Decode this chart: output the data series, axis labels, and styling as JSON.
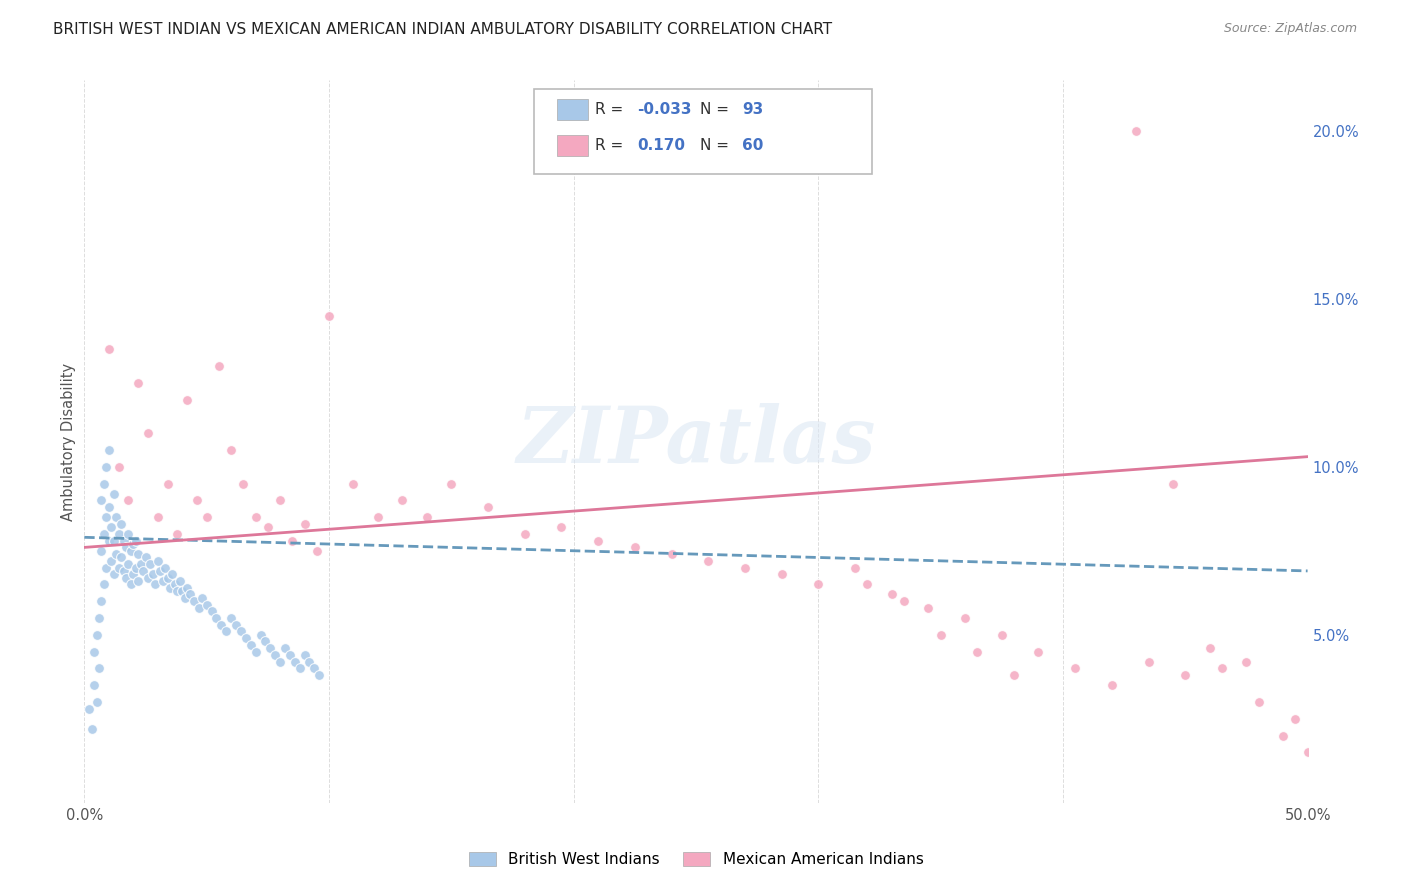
{
  "title": "BRITISH WEST INDIAN VS MEXICAN AMERICAN INDIAN AMBULATORY DISABILITY CORRELATION CHART",
  "source": "Source: ZipAtlas.com",
  "ylabel": "Ambulatory Disability",
  "blue_color": "#a8c8e8",
  "pink_color": "#f4a8c0",
  "blue_line_color": "#6699bb",
  "pink_line_color": "#dd7799",
  "legend_R1": "-0.033",
  "legend_N1": "93",
  "legend_R2": "0.170",
  "legend_N2": "60",
  "legend_label1": "British West Indians",
  "legend_label2": "Mexican American Indians",
  "watermark": "ZIPatlas",
  "title_color": "#222222",
  "source_color": "#888888",
  "axis_label_color": "#555555",
  "right_tick_color": "#4472c4",
  "grid_color": "#dddddd",
  "blue_x": [
    0.002,
    0.003,
    0.004,
    0.004,
    0.005,
    0.005,
    0.006,
    0.006,
    0.007,
    0.007,
    0.007,
    0.008,
    0.008,
    0.008,
    0.009,
    0.009,
    0.009,
    0.01,
    0.01,
    0.01,
    0.011,
    0.011,
    0.012,
    0.012,
    0.012,
    0.013,
    0.013,
    0.014,
    0.014,
    0.015,
    0.015,
    0.016,
    0.016,
    0.017,
    0.017,
    0.018,
    0.018,
    0.019,
    0.019,
    0.02,
    0.02,
    0.021,
    0.021,
    0.022,
    0.022,
    0.023,
    0.024,
    0.025,
    0.026,
    0.027,
    0.028,
    0.029,
    0.03,
    0.031,
    0.032,
    0.033,
    0.034,
    0.035,
    0.036,
    0.037,
    0.038,
    0.039,
    0.04,
    0.041,
    0.042,
    0.043,
    0.045,
    0.047,
    0.048,
    0.05,
    0.052,
    0.054,
    0.056,
    0.058,
    0.06,
    0.062,
    0.064,
    0.066,
    0.068,
    0.07,
    0.072,
    0.074,
    0.076,
    0.078,
    0.08,
    0.082,
    0.084,
    0.086,
    0.088,
    0.09,
    0.092,
    0.094,
    0.096
  ],
  "blue_y": [
    0.028,
    0.022,
    0.035,
    0.045,
    0.03,
    0.05,
    0.04,
    0.055,
    0.06,
    0.075,
    0.09,
    0.065,
    0.08,
    0.095,
    0.07,
    0.085,
    0.1,
    0.078,
    0.088,
    0.105,
    0.072,
    0.082,
    0.068,
    0.078,
    0.092,
    0.074,
    0.085,
    0.07,
    0.08,
    0.073,
    0.083,
    0.069,
    0.078,
    0.067,
    0.076,
    0.071,
    0.08,
    0.065,
    0.075,
    0.068,
    0.077,
    0.07,
    0.078,
    0.066,
    0.074,
    0.071,
    0.069,
    0.073,
    0.067,
    0.071,
    0.068,
    0.065,
    0.072,
    0.069,
    0.066,
    0.07,
    0.067,
    0.064,
    0.068,
    0.065,
    0.063,
    0.066,
    0.063,
    0.061,
    0.064,
    0.062,
    0.06,
    0.058,
    0.061,
    0.059,
    0.057,
    0.055,
    0.053,
    0.051,
    0.055,
    0.053,
    0.051,
    0.049,
    0.047,
    0.045,
    0.05,
    0.048,
    0.046,
    0.044,
    0.042,
    0.046,
    0.044,
    0.042,
    0.04,
    0.044,
    0.042,
    0.04,
    0.038
  ],
  "pink_x": [
    0.01,
    0.014,
    0.018,
    0.022,
    0.026,
    0.03,
    0.034,
    0.038,
    0.042,
    0.046,
    0.05,
    0.055,
    0.06,
    0.065,
    0.07,
    0.075,
    0.08,
    0.085,
    0.09,
    0.095,
    0.1,
    0.11,
    0.12,
    0.13,
    0.14,
    0.15,
    0.165,
    0.18,
    0.195,
    0.21,
    0.225,
    0.24,
    0.255,
    0.27,
    0.285,
    0.3,
    0.315,
    0.33,
    0.345,
    0.36,
    0.375,
    0.39,
    0.405,
    0.42,
    0.435,
    0.45,
    0.465,
    0.48,
    0.495,
    0.32,
    0.335,
    0.35,
    0.365,
    0.38,
    0.5,
    0.49,
    0.475,
    0.46,
    0.445,
    0.43
  ],
  "pink_y": [
    0.135,
    0.1,
    0.09,
    0.125,
    0.11,
    0.085,
    0.095,
    0.08,
    0.12,
    0.09,
    0.085,
    0.13,
    0.105,
    0.095,
    0.085,
    0.082,
    0.09,
    0.078,
    0.083,
    0.075,
    0.145,
    0.095,
    0.085,
    0.09,
    0.085,
    0.095,
    0.088,
    0.08,
    0.082,
    0.078,
    0.076,
    0.074,
    0.072,
    0.07,
    0.068,
    0.065,
    0.07,
    0.062,
    0.058,
    0.055,
    0.05,
    0.045,
    0.04,
    0.035,
    0.042,
    0.038,
    0.04,
    0.03,
    0.025,
    0.065,
    0.06,
    0.05,
    0.045,
    0.038,
    0.015,
    0.02,
    0.042,
    0.046,
    0.095,
    0.2
  ],
  "blue_trend": [
    0.0,
    0.5,
    0.079,
    0.069
  ],
  "pink_trend": [
    0.0,
    0.5,
    0.076,
    0.103
  ]
}
